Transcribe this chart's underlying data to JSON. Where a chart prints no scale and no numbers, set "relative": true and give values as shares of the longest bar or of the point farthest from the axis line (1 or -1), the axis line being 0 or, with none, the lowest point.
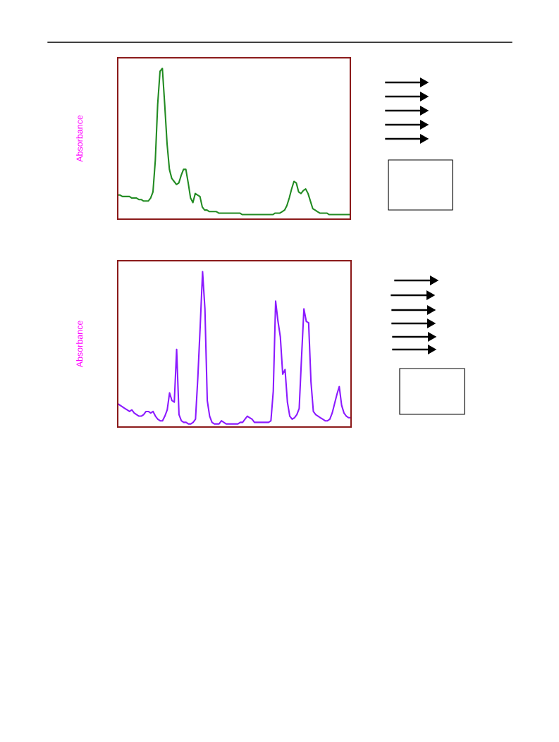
{
  "chart_data": [
    {
      "type": "line",
      "ylabel": "Absorbance",
      "relative": true,
      "categories": [
        null,
        null,
        null,
        null,
        null,
        null,
        null,
        null,
        null,
        null,
        null,
        null,
        null,
        null,
        null,
        null,
        null,
        null,
        null,
        null,
        null,
        null,
        null,
        null,
        null,
        null,
        null,
        null,
        null,
        null,
        null,
        null,
        null,
        null,
        null,
        null,
        null,
        null,
        null,
        null,
        null,
        null,
        null,
        null,
        null,
        null,
        null,
        null,
        null,
        null,
        null,
        null,
        null,
        null,
        null,
        null,
        null,
        null,
        null,
        null,
        null,
        null,
        null,
        null,
        null,
        null,
        null,
        null,
        null,
        null,
        null,
        null,
        null,
        null,
        null,
        null,
        null,
        null,
        null,
        null,
        null,
        null,
        null,
        null,
        null,
        null,
        null,
        null,
        null,
        null,
        null,
        null,
        null,
        null,
        null,
        null,
        null,
        null,
        null,
        null
      ],
      "series": [
        {
          "color": "#228b22",
          "values": [
            0.16,
            0.16,
            0.15,
            0.15,
            0.15,
            0.15,
            0.14,
            0.14,
            0.14,
            0.13,
            0.13,
            0.12,
            0.12,
            0.12,
            0.14,
            0.18,
            0.39,
            0.76,
            0.98,
            1.0,
            0.76,
            0.5,
            0.33,
            0.27,
            0.25,
            0.23,
            0.24,
            0.29,
            0.33,
            0.33,
            0.24,
            0.14,
            0.11,
            0.17,
            0.16,
            0.15,
            0.08,
            0.06,
            0.06,
            0.05,
            0.05,
            0.05,
            0.05,
            0.04,
            0.04,
            0.04,
            0.04,
            0.04,
            0.04,
            0.04,
            0.04,
            0.04,
            0.04,
            0.03,
            0.03,
            0.03,
            0.03,
            0.03,
            0.03,
            0.03,
            0.03,
            0.03,
            0.03,
            0.03,
            0.03,
            0.03,
            0.03,
            0.04,
            0.04,
            0.04,
            0.05,
            0.06,
            0.09,
            0.14,
            0.2,
            0.25,
            0.24,
            0.18,
            0.17,
            0.19,
            0.2,
            0.17,
            0.12,
            0.07,
            0.06,
            0.05,
            0.04,
            0.04,
            0.04,
            0.04,
            0.03,
            0.03,
            0.03,
            0.03,
            0.03,
            0.03,
            0.03,
            0.03,
            0.03,
            0.03
          ]
        }
      ]
    },
    {
      "type": "line",
      "ylabel": "Absorbance",
      "relative": true,
      "categories": [
        null,
        null,
        null,
        null,
        null,
        null,
        null,
        null,
        null,
        null,
        null,
        null,
        null,
        null,
        null,
        null,
        null,
        null,
        null,
        null,
        null,
        null,
        null,
        null,
        null,
        null,
        null,
        null,
        null,
        null,
        null,
        null,
        null,
        null,
        null,
        null,
        null,
        null,
        null,
        null,
        null,
        null,
        null,
        null,
        null,
        null,
        null,
        null,
        null,
        null,
        null,
        null,
        null,
        null,
        null,
        null,
        null,
        null,
        null,
        null,
        null,
        null,
        null,
        null,
        null,
        null,
        null,
        null,
        null,
        null,
        null,
        null,
        null,
        null,
        null,
        null,
        null,
        null,
        null,
        null,
        null,
        null,
        null,
        null,
        null,
        null,
        null,
        null,
        null,
        null,
        null,
        null,
        null,
        null,
        null,
        null,
        null,
        null,
        null,
        null
      ],
      "series": [
        {
          "color": "#8b1aff",
          "values": [
            0.15,
            0.14,
            0.13,
            0.12,
            0.11,
            0.1,
            0.11,
            0.09,
            0.08,
            0.07,
            0.07,
            0.08,
            0.1,
            0.1,
            0.09,
            0.1,
            0.07,
            0.05,
            0.04,
            0.04,
            0.07,
            0.11,
            0.22,
            0.17,
            0.16,
            0.5,
            0.08,
            0.04,
            0.03,
            0.03,
            0.02,
            0.02,
            0.03,
            0.05,
            0.32,
            0.65,
            1.0,
            0.76,
            0.17,
            0.07,
            0.03,
            0.02,
            0.02,
            0.02,
            0.04,
            0.03,
            0.02,
            0.02,
            0.02,
            0.02,
            0.02,
            0.02,
            0.03,
            0.03,
            0.05,
            0.07,
            0.06,
            0.05,
            0.03,
            0.03,
            0.03,
            0.03,
            0.03,
            0.03,
            0.03,
            0.04,
            0.23,
            0.81,
            0.68,
            0.58,
            0.34,
            0.37,
            0.16,
            0.07,
            0.05,
            0.06,
            0.08,
            0.12,
            0.45,
            0.76,
            0.68,
            0.67,
            0.29,
            0.1,
            0.08,
            0.07,
            0.06,
            0.05,
            0.04,
            0.04,
            0.05,
            0.09,
            0.15,
            0.21,
            0.26,
            0.14,
            0.09,
            0.07,
            0.06,
            0.06
          ]
        }
      ]
    }
  ]
}
